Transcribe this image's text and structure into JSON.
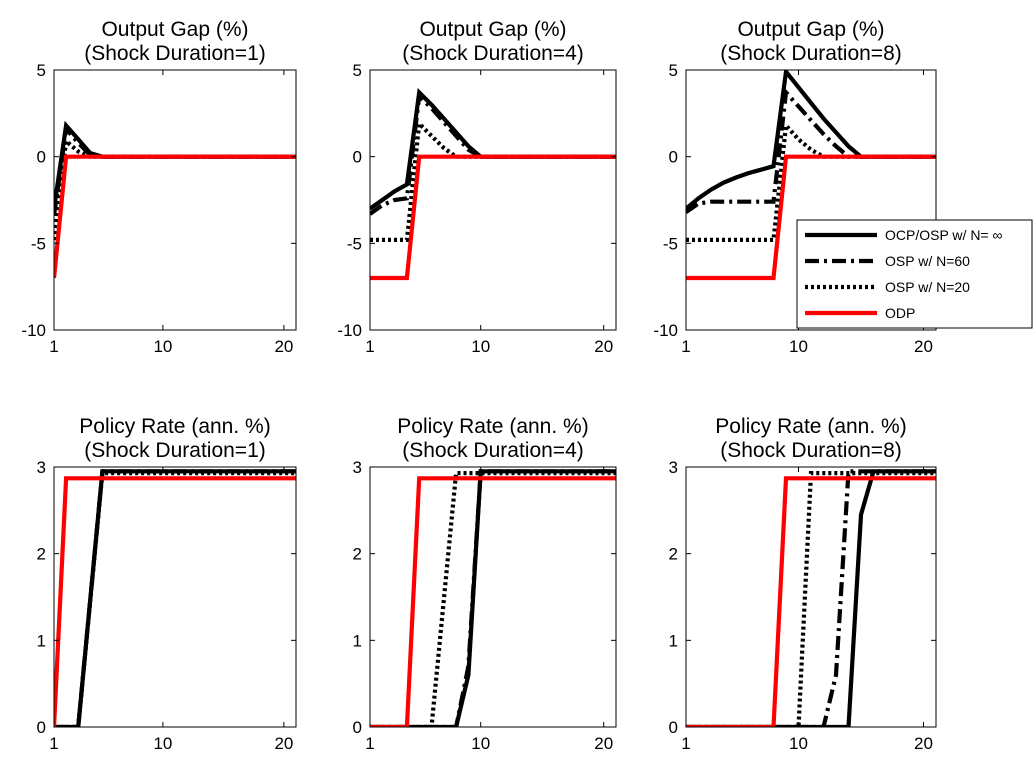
{
  "chart_data": [
    {
      "type": "line",
      "title": [
        "Output Gap (%)",
        "(Shock Duration=1)"
      ],
      "xlim": [
        1,
        21
      ],
      "ylim": [
        -10,
        5
      ],
      "xticks": [
        1,
        10,
        20
      ],
      "yticks": [
        -10,
        -5,
        0,
        5
      ],
      "series": [
        {
          "key": "ocp",
          "x": [
            1,
            2,
            3,
            4,
            5,
            21
          ],
          "y": [
            -3.0,
            1.8,
            1.0,
            0.2,
            0,
            0
          ]
        },
        {
          "key": "osp60",
          "x": [
            1,
            2,
            3,
            4,
            5,
            21
          ],
          "y": [
            -3.4,
            1.6,
            0.8,
            0.1,
            0,
            0
          ]
        },
        {
          "key": "osp20",
          "x": [
            1,
            2,
            3,
            4,
            21
          ],
          "y": [
            -4.8,
            0.9,
            0.3,
            0,
            0
          ]
        },
        {
          "key": "odp",
          "x": [
            1,
            2,
            21
          ],
          "y": [
            -7.0,
            0,
            0
          ]
        }
      ]
    },
    {
      "type": "line",
      "title": [
        "Output Gap (%)",
        "(Shock Duration=4)"
      ],
      "xlim": [
        1,
        21
      ],
      "ylim": [
        -10,
        5
      ],
      "xticks": [
        1,
        10,
        20
      ],
      "yticks": [
        -10,
        -5,
        0,
        5
      ],
      "series": [
        {
          "key": "ocp",
          "x": [
            1,
            2,
            3,
            4,
            5,
            6,
            7,
            8,
            9,
            10,
            21
          ],
          "y": [
            -3.0,
            -2.5,
            -2.0,
            -1.6,
            3.7,
            3.0,
            2.2,
            1.4,
            0.6,
            0,
            0
          ]
        },
        {
          "key": "osp60",
          "x": [
            1,
            2,
            3,
            4,
            5,
            6,
            7,
            8,
            9,
            10,
            21
          ],
          "y": [
            -3.3,
            -2.8,
            -2.5,
            -2.4,
            3.5,
            2.8,
            2.0,
            1.2,
            0.4,
            0,
            0
          ]
        },
        {
          "key": "osp20",
          "x": [
            1,
            2,
            3,
            4,
            5,
            6,
            7,
            8,
            21
          ],
          "y": [
            -4.8,
            -4.8,
            -4.8,
            -4.8,
            1.9,
            1.2,
            0.5,
            0,
            0
          ]
        },
        {
          "key": "odp",
          "x": [
            1,
            2,
            3,
            4,
            5,
            21
          ],
          "y": [
            -7.0,
            -7.0,
            -7.0,
            -7.0,
            0,
            0
          ]
        }
      ]
    },
    {
      "type": "line",
      "title": [
        "Output Gap (%)",
        "(Shock Duration=8)"
      ],
      "xlim": [
        1,
        21
      ],
      "ylim": [
        -10,
        5
      ],
      "xticks": [
        1,
        10,
        20
      ],
      "yticks": [
        -10,
        -5,
        0,
        5
      ],
      "series": [
        {
          "key": "ocp",
          "x": [
            1,
            2,
            3,
            4,
            5,
            6,
            7,
            8,
            9,
            10,
            11,
            12,
            13,
            14,
            15,
            16,
            21
          ],
          "y": [
            -3.0,
            -2.4,
            -1.9,
            -1.5,
            -1.2,
            -0.95,
            -0.75,
            -0.55,
            4.9,
            4.0,
            3.1,
            2.2,
            1.4,
            0.6,
            0,
            0,
            0
          ]
        },
        {
          "key": "osp60",
          "x": [
            1,
            2,
            3,
            4,
            5,
            6,
            7,
            8,
            9,
            10,
            11,
            12,
            13,
            14,
            15,
            21
          ],
          "y": [
            -3.2,
            -2.7,
            -2.6,
            -2.6,
            -2.6,
            -2.6,
            -2.6,
            -2.6,
            3.7,
            2.9,
            2.1,
            1.3,
            0.6,
            0,
            0,
            0
          ]
        },
        {
          "key": "osp20",
          "x": [
            1,
            2,
            3,
            4,
            5,
            6,
            7,
            8,
            9,
            10,
            11,
            12,
            13,
            21
          ],
          "y": [
            -4.8,
            -4.8,
            -4.8,
            -4.8,
            -4.8,
            -4.8,
            -4.8,
            -4.8,
            1.8,
            1.0,
            0.4,
            0,
            0,
            0
          ]
        },
        {
          "key": "odp",
          "x": [
            1,
            2,
            3,
            4,
            5,
            6,
            7,
            8,
            9,
            21
          ],
          "y": [
            -7.0,
            -7.0,
            -7.0,
            -7.0,
            -7.0,
            -7.0,
            -7.0,
            -7.0,
            0,
            0
          ]
        }
      ]
    },
    {
      "type": "line",
      "title": [
        "Policy Rate (ann. %)",
        "(Shock Duration=1)"
      ],
      "xlim": [
        1,
        21
      ],
      "ylim": [
        0,
        3
      ],
      "xticks": [
        1,
        10,
        20
      ],
      "yticks": [
        0,
        1,
        2,
        3
      ],
      "series": [
        {
          "key": "ocp",
          "x": [
            1,
            3,
            5,
            21
          ],
          "y": [
            0,
            0,
            2.95,
            2.95
          ]
        },
        {
          "key": "osp60",
          "x": [
            1,
            3,
            5,
            21
          ],
          "y": [
            0,
            0,
            2.95,
            2.95
          ]
        },
        {
          "key": "osp20",
          "x": [
            1,
            3,
            5,
            21
          ],
          "y": [
            0,
            0,
            2.93,
            2.93
          ]
        },
        {
          "key": "odp",
          "x": [
            1,
            2,
            21
          ],
          "y": [
            0,
            2.87,
            2.87
          ]
        }
      ]
    },
    {
      "type": "line",
      "title": [
        "Policy Rate (ann. %)",
        "(Shock Duration=4)"
      ],
      "xlim": [
        1,
        21
      ],
      "ylim": [
        0,
        3
      ],
      "xticks": [
        1,
        10,
        20
      ],
      "yticks": [
        0,
        1,
        2,
        3
      ],
      "series": [
        {
          "key": "ocp",
          "x": [
            1,
            8,
            9,
            10,
            21
          ],
          "y": [
            0,
            0,
            0.6,
            2.95,
            2.95
          ]
        },
        {
          "key": "osp60",
          "x": [
            1,
            8,
            9,
            10,
            21
          ],
          "y": [
            0,
            0,
            0.7,
            2.95,
            2.95
          ]
        },
        {
          "key": "osp20",
          "x": [
            1,
            6,
            8,
            21
          ],
          "y": [
            0,
            0,
            2.93,
            2.93
          ]
        },
        {
          "key": "odp",
          "x": [
            1,
            4,
            5,
            21
          ],
          "y": [
            0,
            0,
            2.87,
            2.87
          ]
        }
      ]
    },
    {
      "type": "line",
      "title": [
        "Policy Rate (ann. %)",
        "(Shock Duration=8)"
      ],
      "xlim": [
        1,
        21
      ],
      "ylim": [
        0,
        3
      ],
      "xticks": [
        1,
        10,
        20
      ],
      "yticks": [
        0,
        1,
        2,
        3
      ],
      "series": [
        {
          "key": "ocp",
          "x": [
            1,
            14,
            15,
            16,
            21
          ],
          "y": [
            0,
            0,
            2.45,
            2.95,
            2.95
          ]
        },
        {
          "key": "osp60",
          "x": [
            1,
            12,
            13,
            14,
            21
          ],
          "y": [
            0,
            0,
            0.6,
            2.95,
            2.95
          ]
        },
        {
          "key": "osp20",
          "x": [
            1,
            10,
            11,
            21
          ],
          "y": [
            0,
            0,
            2.93,
            2.93
          ]
        },
        {
          "key": "odp",
          "x": [
            1,
            8,
            9,
            21
          ],
          "y": [
            0,
            0,
            2.87,
            2.87
          ]
        }
      ]
    }
  ],
  "legend": [
    {
      "key": "ocp",
      "label": "OCP/OSP w/ N= ∞"
    },
    {
      "key": "osp60",
      "label": "OSP w/ N=60"
    },
    {
      "key": "osp20",
      "label": "OSP w/ N=20"
    },
    {
      "key": "odp",
      "label": "ODP"
    }
  ],
  "styles": {
    "ocp": {
      "color": "#000000",
      "dash": "none"
    },
    "osp60": {
      "color": "#000000",
      "dash": "14 5 3 5"
    },
    "osp20": {
      "color": "#000000",
      "dash": "3 3"
    },
    "odp": {
      "color": "#ff0000",
      "dash": "none"
    }
  }
}
